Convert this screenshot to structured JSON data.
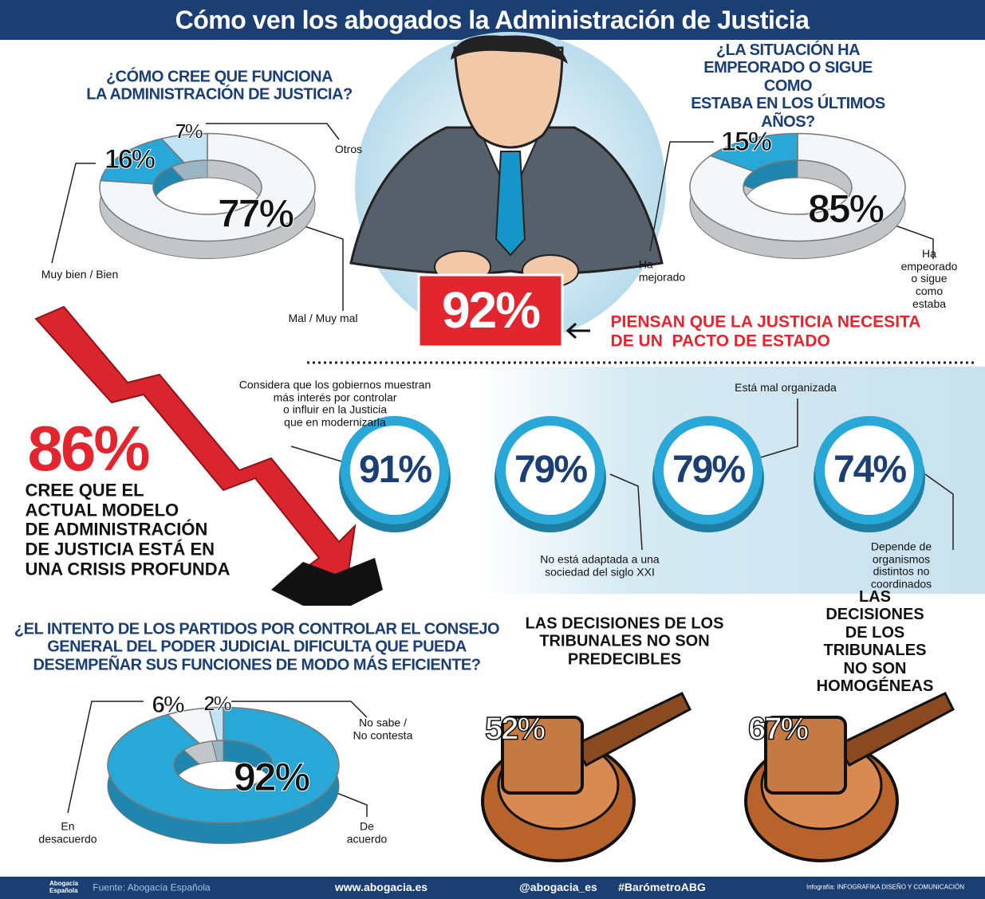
{
  "title": "Cómo ven los abogados la Administración de Justicia",
  "chart_data": [
    {
      "type": "pie",
      "title": "¿CÓMO CREE QUE FUNCIONA\nLA ADMINISTRACIÓN DE JUSTICIA?",
      "categories": [
        "Mal / Muy mal",
        "Muy bien / Bien",
        "Otros"
      ],
      "values": [
        77,
        16,
        7
      ],
      "value_labels": [
        "77%",
        "16%",
        "7%"
      ],
      "colors": [
        "#f3f7fa",
        "#29a8d8",
        "#c2e4f2"
      ]
    },
    {
      "type": "pie",
      "title": "¿LA SITUACIÓN HA EMPEORADO O SIGUE COMO\nESTABA EN LOS ÚLTIMOS AÑOS?",
      "categories": [
        "Ha empeorado\no sigue como estaba",
        "Ha\nmejorado"
      ],
      "values": [
        85,
        15
      ],
      "value_labels": [
        "85%",
        "15%"
      ],
      "colors": [
        "#f3f7fa",
        "#29a8d8"
      ]
    },
    {
      "type": "ring",
      "categories": [
        "Considera que los gobiernos  muestran\nmás interés por controlar\no influir en la Justicia\nque en modernizarla",
        "No está adaptada a una\nsociedad del siglo XXI",
        "Está mal organizada",
        "Depende de organismos\ndistintos no coordinados"
      ],
      "values": [
        91,
        79,
        79,
        74
      ],
      "value_labels": [
        "91%",
        "79%",
        "79%",
        "74%"
      ],
      "color": "#29a8d8"
    },
    {
      "type": "pie",
      "title": "¿EL INTENTO DE LOS PARTIDOS POR CONTROLAR EL CONSEJO\nGENERAL DEL PODER JUDICIAL DIFICULTA QUE PUEDA\nDESEMPEÑAR SUS FUNCIONES DE MODO MÁS EFICIENTE?",
      "categories": [
        "De\nacuerdo",
        "En\ndesacuerdo",
        "No sabe /\nNo contesta"
      ],
      "values": [
        92,
        6,
        2
      ],
      "value_labels": [
        "92%",
        "6%",
        "2%"
      ],
      "colors": [
        "#29a8d8",
        "#f3f7fa",
        "#c2e4f2"
      ]
    },
    {
      "type": "gavel",
      "title": "LAS DECISIONES DE LOS\nTRIBUNALES NO SON\nPREDECIBLES",
      "values": [
        52
      ],
      "value_labels": [
        "52%"
      ]
    },
    {
      "type": "gavel",
      "title": "LAS DECISIONES DE LOS\nTRIBUNALES NO SON\nHOMOGÉNEAS",
      "values": [
        67
      ],
      "value_labels": [
        "67%"
      ]
    }
  ],
  "highlights": [
    {
      "value": "92%",
      "text": "PIENSAN QUE LA JUSTICIA NECESITA\nDE UN  PACTO DE ESTADO"
    },
    {
      "value": "86%",
      "text": "CREE QUE EL\nACTUAL MODELO\nDE ADMINISTRACIÓN\nDE JUSTICIA ESTÁ EN\nUNA CRISIS PROFUNDA"
    }
  ],
  "footer": {
    "logo": "Abogacía\nEspañola",
    "source": "Fuente: Abogacía Española",
    "web": "www.abogacia.es",
    "handle": "@abogacia_es",
    "hashtag": "#BarómetroABG",
    "credit": "Infografía: INFOGRAFIKA DISEÑO Y COMUNICACIÓN"
  }
}
